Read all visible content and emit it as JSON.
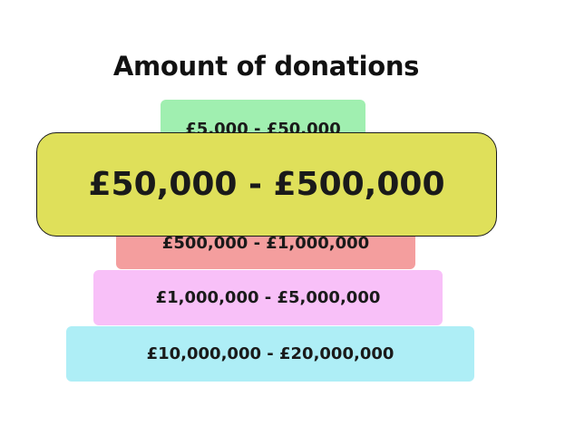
{
  "title": "Amount of donations",
  "tiers": [
    {
      "label": "£5,000 - £50,000",
      "color": "#a0efb0"
    },
    {
      "label": "£50,000 - £500,000",
      "color": "#dfe05a",
      "highlighted": true
    },
    {
      "label": "£500,000 - £1,000,000",
      "color": "#f49e9e"
    },
    {
      "label": "£1,000,000 - £5,000,000",
      "color": "#f8c0f8"
    },
    {
      "label": "£10,000,000 - £20,000,000",
      "color": "#aeeef6"
    }
  ]
}
